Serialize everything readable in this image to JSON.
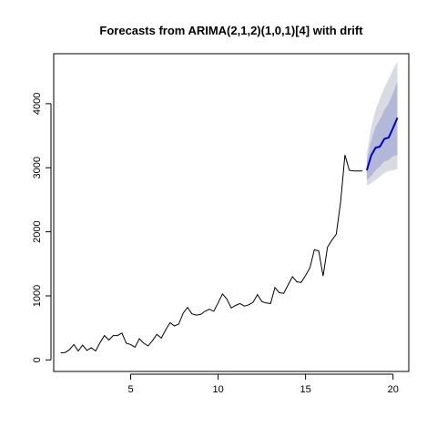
{
  "chart_data": {
    "type": "line",
    "title": "Forecasts from ARIMA(2,1,2)(1,0,1)[4] with drift",
    "xlabel": "",
    "ylabel": "",
    "xlim": [
      0.6,
      20.9
    ],
    "ylim": [
      -180,
      4780
    ],
    "x_ticks": [
      5,
      10,
      15,
      20
    ],
    "y_ticks": [
      0,
      1000,
      2000,
      3000,
      4000
    ],
    "grid": false,
    "legend": "none",
    "colors": {
      "history": "#000000",
      "forecast": "#0000cc",
      "band80": "#b3b8d9",
      "band95": "#dadae3"
    },
    "history": {
      "x": [
        1.0,
        1.25,
        1.5,
        1.75,
        2.0,
        2.25,
        2.5,
        2.75,
        3.0,
        3.25,
        3.5,
        3.75,
        4.0,
        4.25,
        4.5,
        4.75,
        5.0,
        5.25,
        5.5,
        5.75,
        6.0,
        6.25,
        6.5,
        6.75,
        7.0,
        7.25,
        7.5,
        7.75,
        8.0,
        8.25,
        8.5,
        8.75,
        9.0,
        9.25,
        9.5,
        9.75,
        10.0,
        10.25,
        10.5,
        10.75,
        11.0,
        11.25,
        11.5,
        11.75,
        12.0,
        12.25,
        12.5,
        12.75,
        13.0,
        13.25,
        13.5,
        13.75,
        14.0,
        14.25,
        14.5,
        14.75,
        15.0,
        15.25,
        15.5,
        15.75,
        16.0,
        16.25,
        16.5,
        16.75,
        17.0,
        17.25,
        17.5,
        17.75,
        18.0,
        18.25
      ],
      "y": [
        110,
        115,
        160,
        240,
        140,
        230,
        150,
        190,
        140,
        270,
        380,
        310,
        380,
        380,
        420,
        260,
        240,
        200,
        330,
        260,
        220,
        300,
        400,
        340,
        470,
        580,
        530,
        560,
        730,
        820,
        720,
        700,
        710,
        760,
        790,
        760,
        890,
        1030,
        950,
        810,
        850,
        880,
        840,
        860,
        900,
        1020,
        910,
        890,
        880,
        1130,
        1050,
        1040,
        1170,
        1300,
        1220,
        1210,
        1320,
        1440,
        1720,
        1700,
        1310,
        1760,
        1870,
        1960,
        2460,
        3200,
        2960,
        2950,
        2950,
        2950
      ]
    },
    "forecast": {
      "x": [
        18.5,
        18.75,
        19.0,
        19.25,
        19.5,
        19.75,
        20.0,
        20.25
      ],
      "mean": [
        2960,
        3190,
        3310,
        3330,
        3450,
        3470,
        3620,
        3780
      ],
      "lo80": [
        2810,
        2870,
        2960,
        3020,
        3100,
        3120,
        3180,
        3200
      ],
      "hi80": [
        3110,
        3420,
        3640,
        3750,
        3900,
        4000,
        4160,
        4350
      ],
      "lo95": [
        2720,
        2760,
        2810,
        2860,
        2920,
        2950,
        2960,
        2980
      ],
      "hi95": [
        3220,
        3630,
        3900,
        4080,
        4250,
        4380,
        4530,
        4660
      ]
    }
  }
}
